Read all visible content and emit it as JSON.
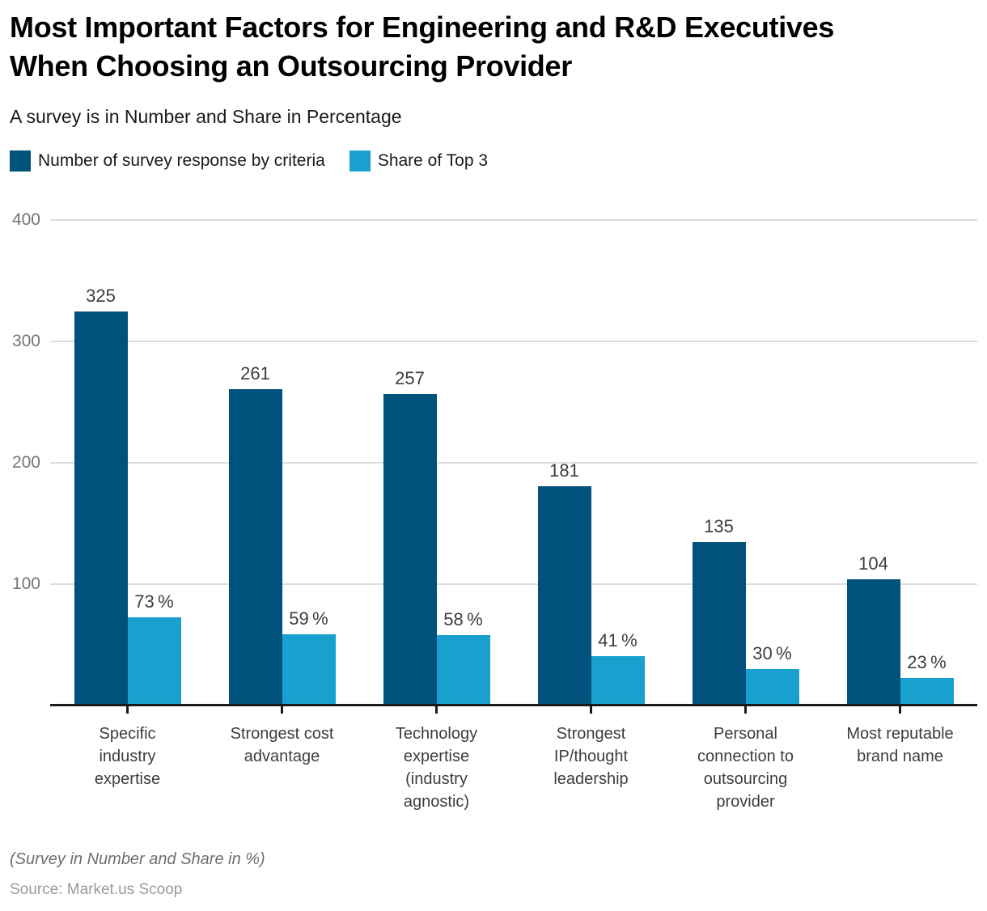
{
  "title": "Most Important Factors for Engineering and R&D Executives\nWhen Choosing an Outsourcing Provider",
  "subtitle": "A survey is in Number and Share in Percentage",
  "legend": [
    {
      "label": "Number of survey response by criteria",
      "color": "#00527d"
    },
    {
      "label": "Share of Top 3",
      "color": "#18a1cf"
    }
  ],
  "footnote": "(Survey in Number and Share in %)",
  "source": "Source: Market.us Scoop",
  "colors": {
    "count_bar": "#00527d",
    "share_bar": "#18a1cf",
    "gridline": "#dcdcdc",
    "axis_line": "#1a1a1a",
    "axis_text": "#757575",
    "value_text": "#3d3d3d"
  },
  "chart_data": {
    "type": "bar",
    "title": "Most Important Factors for Engineering and R&D Executives When Choosing an Outsourcing Provider",
    "subtitle": "A survey is in Number and Share in Percentage",
    "categories": [
      "Specific industry expertise",
      "Strongest cost advantage",
      "Technology expertise (industry agnostic)",
      "Strongest IP/thought leadership",
      "Personal connection to outsourcing provider",
      "Most reputable brand name"
    ],
    "category_lines": [
      [
        "Specific",
        "industry",
        "expertise"
      ],
      [
        "Strongest cost",
        "advantage"
      ],
      [
        "Technology",
        "expertise",
        "(industry",
        "agnostic)"
      ],
      [
        "Strongest",
        "IP/thought",
        "leadership"
      ],
      [
        "Personal",
        "connection to",
        "outsourcing",
        "provider"
      ],
      [
        "Most reputable",
        "brand name"
      ]
    ],
    "series": [
      {
        "name": "Number of survey response by criteria",
        "values": [
          325,
          261,
          257,
          181,
          135,
          104
        ],
        "labels": [
          "325",
          "261",
          "257",
          "181",
          "135",
          "104"
        ],
        "color": "#00527d"
      },
      {
        "name": "Share of Top 3",
        "values": [
          73,
          59,
          58,
          41,
          30,
          23
        ],
        "labels": [
          "73 %",
          "59 %",
          "58 %",
          "41 %",
          "30 %",
          "23 %"
        ],
        "color": "#18a1cf"
      }
    ],
    "xlabel": "",
    "ylabel": "",
    "ylim": [
      0,
      400
    ],
    "yticks": [
      100,
      200,
      300,
      400
    ],
    "grid": true,
    "legend_position": "top"
  }
}
